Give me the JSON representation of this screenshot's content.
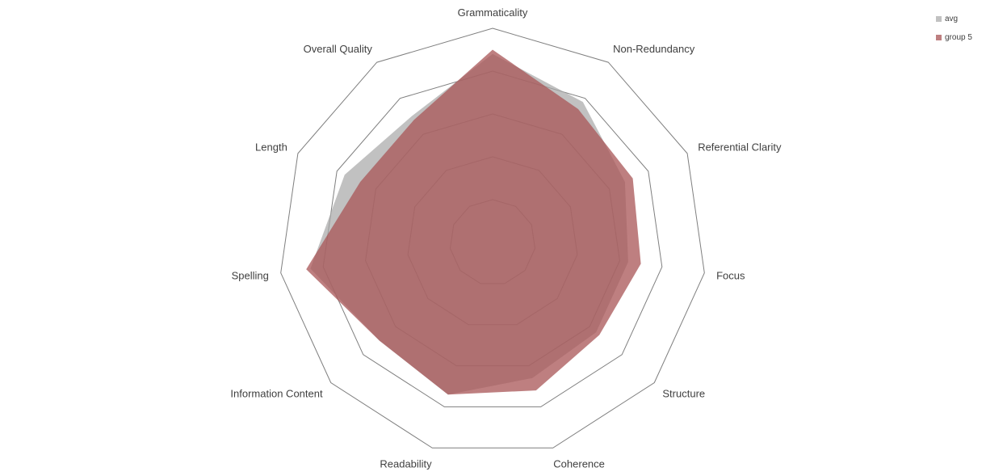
{
  "chart_data": {
    "type": "radar",
    "title": "",
    "categories": [
      "Grammaticality",
      "Non-Redundancy",
      "Referential Clarity",
      "Focus",
      "Structure",
      "Coherence",
      "Readability",
      "Information Content",
      "Spelling",
      "Length",
      "Overall Quality"
    ],
    "rlim": [
      0,
      5
    ],
    "rings": 5,
    "grid": true,
    "legend_position": "top-right",
    "series": [
      {
        "name": "avg",
        "color": "#a6a6a6",
        "opacity": 0.7,
        "values": [
          4.4,
          3.9,
          3.4,
          3.2,
          3.2,
          3.3,
          3.7,
          3.5,
          4.3,
          3.8,
          3.5
        ]
      },
      {
        "name": "group 5",
        "color": "#a85456",
        "opacity": 0.75,
        "values": [
          4.5,
          3.7,
          3.6,
          3.5,
          3.3,
          3.6,
          3.7,
          3.5,
          4.4,
          3.4,
          3.4
        ]
      }
    ]
  }
}
